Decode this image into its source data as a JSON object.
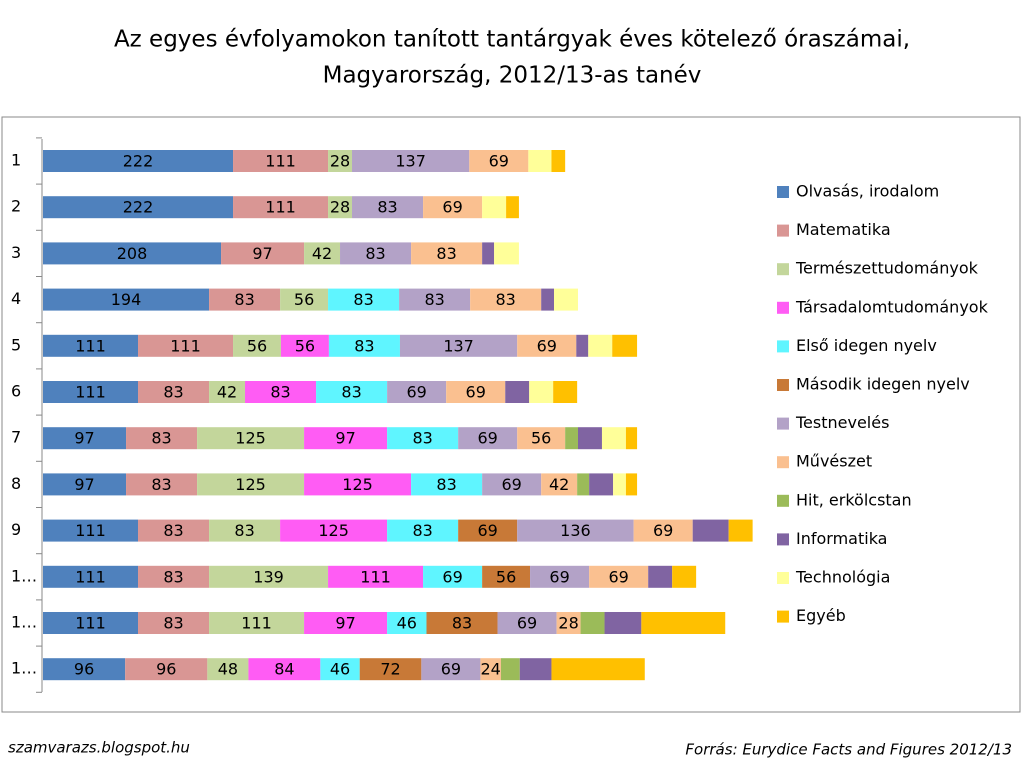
{
  "chart_data": {
    "type": "stacked-bar-horizontal",
    "title": "Az egyes évfolyamokon tanított tantárgyak éves kötelező óraszámai,",
    "subtitle": "Magyarország, 2012/13-as tanév",
    "categories": [
      "1",
      "2",
      "3",
      "4",
      "5",
      "6",
      "7",
      "8",
      "9",
      "1…",
      "1…",
      "1…"
    ],
    "series": [
      {
        "name": "Olvasás, irodalom",
        "color": "#4f81bd",
        "data_labels": true,
        "values": [
          222,
          222,
          208,
          194,
          111,
          111,
          97,
          97,
          111,
          111,
          111,
          96
        ]
      },
      {
        "name": "Matematika",
        "color": "#d99694",
        "data_labels": true,
        "values": [
          111,
          111,
          97,
          83,
          111,
          83,
          83,
          83,
          83,
          83,
          83,
          96
        ]
      },
      {
        "name": "Természettudományok",
        "color": "#c3d69b",
        "data_labels": true,
        "values": [
          28,
          28,
          42,
          56,
          56,
          42,
          125,
          125,
          83,
          139,
          111,
          48
        ]
      },
      {
        "name": "Társadalomtudományok",
        "color": "#ff5cf4",
        "data_labels": true,
        "values": [
          null,
          null,
          null,
          null,
          56,
          83,
          97,
          125,
          125,
          111,
          97,
          84
        ]
      },
      {
        "name": "Első idegen nyelv",
        "color": "#5ff5ff",
        "data_labels": true,
        "values": [
          null,
          null,
          null,
          83,
          83,
          83,
          83,
          83,
          83,
          69,
          46,
          46
        ]
      },
      {
        "name": "Második idegen nyelv",
        "color": "#c87937",
        "data_labels": true,
        "values": [
          null,
          null,
          null,
          null,
          null,
          null,
          null,
          null,
          69,
          56,
          83,
          72
        ]
      },
      {
        "name": "Testnevelés",
        "color": "#b3a2c7",
        "data_labels": true,
        "values": [
          137,
          83,
          83,
          83,
          137,
          69,
          69,
          69,
          136,
          69,
          69,
          69
        ]
      },
      {
        "name": "Művészet",
        "color": "#fac090",
        "data_labels": true,
        "values": [
          69,
          69,
          83,
          83,
          69,
          69,
          56,
          42,
          69,
          69,
          28,
          24
        ]
      },
      {
        "name": "Hit, erkölcstan",
        "color": "#9bbb59",
        "data_labels": false,
        "values": [
          null,
          null,
          null,
          null,
          null,
          null,
          15,
          14,
          null,
          null,
          28,
          22
        ]
      },
      {
        "name": "Informatika",
        "color": "#8064a2",
        "data_labels": false,
        "values": [
          null,
          null,
          14,
          15,
          14,
          28,
          28,
          28,
          42,
          28,
          43,
          37
        ]
      },
      {
        "name": "Technológia",
        "color": "#ffff99",
        "data_labels": false,
        "values": [
          27,
          28,
          29,
          28,
          28,
          28,
          28,
          15,
          null,
          null,
          null,
          null
        ]
      },
      {
        "name": "Egyéb",
        "color": "#ffc000",
        "data_labels": false,
        "values": [
          16,
          15,
          null,
          null,
          29,
          28,
          13,
          13,
          28,
          28,
          98,
          109
        ]
      }
    ],
    "footer_left": "szamvarazs.blogspot.hu",
    "footer_right": "Forrás: Eurydice Facts and Figures 2012/13"
  }
}
